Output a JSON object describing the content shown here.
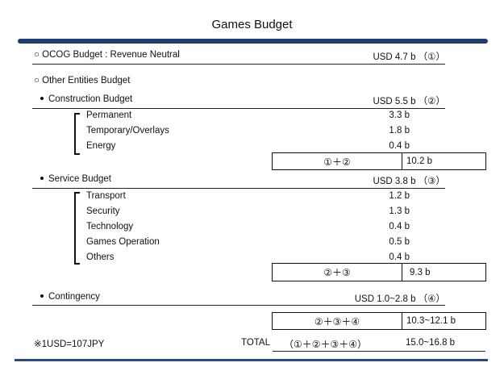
{
  "title": "Games Budget",
  "ocog": {
    "label": "○ OCOG Budget : Revenue Neutral",
    "value": "USD 4.7 b （①）"
  },
  "other_entities": {
    "label": "○ Other Entities Budget"
  },
  "construction": {
    "label": "Construction Budget",
    "value": "USD 5.5 b （②）",
    "items": [
      {
        "label": "Permanent",
        "value": "3.3 b"
      },
      {
        "label": "Temporary/Overlays",
        "value": "1.8 b"
      },
      {
        "label": "Energy",
        "value": "0.4 b"
      }
    ],
    "sum": {
      "formula": "①＋②",
      "value": "10.2 b"
    }
  },
  "service": {
    "label": "Service Budget",
    "value": "USD 3.8 b （③）",
    "items": [
      {
        "label": "Transport",
        "value": "1.2 b"
      },
      {
        "label": "Security",
        "value": "1.3 b"
      },
      {
        "label": "Technology",
        "value": "0.4 b"
      },
      {
        "label": "Games Operation",
        "value": "0.5 b"
      },
      {
        "label": "Others",
        "value": "0.4 b"
      }
    ],
    "sum": {
      "formula": "②＋③",
      "value": "9.3 b"
    }
  },
  "contingency": {
    "label": "Contingency",
    "value": "USD 1.0~2.8 b （④）",
    "sum": {
      "formula": "②＋③＋④",
      "value": "10.3~12.1 b"
    }
  },
  "footer": {
    "note": "※1USD=107JPY",
    "total_label": "TOTAL",
    "total_formula": "（①＋②＋③＋④）",
    "total_value": "15.0~16.8 b"
  }
}
